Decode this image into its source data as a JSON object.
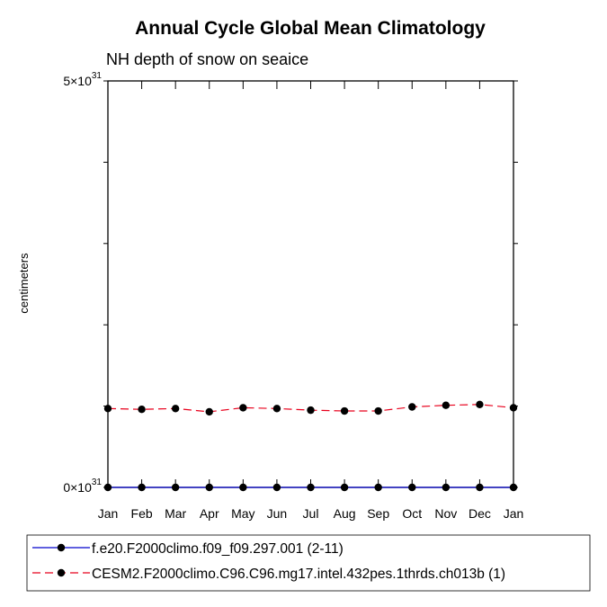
{
  "chart_data": {
    "type": "line",
    "title": "Annual Cycle Global Mean Climatology",
    "subtitle": "NH depth of snow on seaice",
    "ylabel": "centimeters",
    "xlabel": "",
    "categories": [
      "Jan",
      "Feb",
      "Mar",
      "Apr",
      "May",
      "Jun",
      "Jul",
      "Aug",
      "Sep",
      "Oct",
      "Nov",
      "Dec",
      "Jan"
    ],
    "ylim": [
      0,
      5
    ],
    "y_scale_exponent": 31,
    "ytick_labels": [
      {
        "value": 0,
        "mantissa": "0",
        "times": "×10",
        "exponent": "31"
      },
      {
        "value": 5,
        "mantissa": "5",
        "times": "×10",
        "exponent": "31"
      }
    ],
    "series": [
      {
        "name": "f.e20.F2000climo.f09_f09.297.001 (2-11)",
        "color": "#0000cc",
        "dash": "solid",
        "values": [
          0,
          0,
          0,
          0,
          0,
          0,
          0,
          0,
          0,
          0,
          0,
          0,
          0
        ]
      },
      {
        "name": "CESM2.F2000climo.C96.C96.mg17.intel.432pes.1thrds.ch013b (1)",
        "color": "#e8001c",
        "dash": "dashed",
        "values": [
          0.97,
          0.96,
          0.97,
          0.93,
          0.98,
          0.97,
          0.95,
          0.94,
          0.94,
          0.99,
          1.01,
          1.02,
          0.98
        ]
      }
    ],
    "legend_position": "bottom"
  }
}
